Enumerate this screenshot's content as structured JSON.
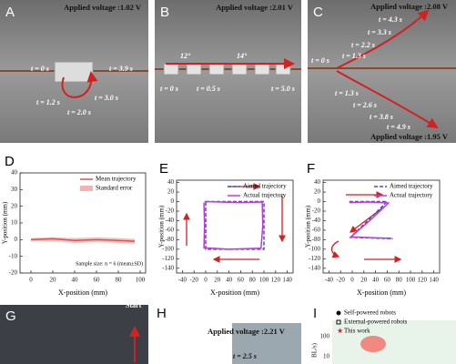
{
  "panels": {
    "A": {
      "label": "A",
      "voltage": "Applied voltage :1.02 V",
      "times": [
        "t = 0 s",
        "t = 3.9 s",
        "t = 1.2 s",
        "t = 3.0 s",
        "t = 2.0 s"
      ]
    },
    "B": {
      "label": "B",
      "voltage": "Applied voltage :2.01 V",
      "angles": [
        "12°",
        "14°"
      ],
      "times": [
        "t = 0 s",
        "t = 0.5 s",
        "t = 5.0 s"
      ]
    },
    "C": {
      "label": "C",
      "voltage_top": "Applied voltage :2.08 V",
      "voltage_bottom": "Applied voltage :1.95 V",
      "times": [
        "t = 4.3 s",
        "t = 3.3 s",
        "t = 2.2 s",
        "t = 1.3 s",
        "t = 0 s",
        "t = 1.3 s",
        "t = 2.6 s",
        "t = 3.8 s",
        "t = 4.9 s"
      ]
    },
    "G": {
      "label": "G",
      "start": "Start"
    },
    "H": {
      "label": "H",
      "voltage": "Applied voltage :2.21 V",
      "time": "t = 2.5 s"
    },
    "I": {
      "label": "I",
      "legend": [
        "Self-powered robots",
        "External-powered robots",
        "This work"
      ],
      "yticks": [
        "100",
        "10"
      ],
      "ylabel": "BL/s)"
    }
  },
  "chart_data": [
    {
      "panel": "D",
      "type": "line",
      "xlabel": "X-position (mm)",
      "ylabel": "Y-position (mm)",
      "xlim": [
        -10,
        105
      ],
      "xticks": [
        0,
        20,
        40,
        60,
        80,
        100
      ],
      "ylim": [
        -20,
        40
      ],
      "yticks": [
        -20,
        -10,
        0,
        10,
        20,
        30,
        40
      ],
      "series": [
        {
          "name": "Mean trajectory",
          "color": "#d9534f",
          "x": [
            0,
            20,
            40,
            60,
            80,
            95
          ],
          "values": [
            0,
            0.5,
            -0.5,
            0,
            -0.5,
            -1
          ]
        }
      ],
      "band": {
        "name": "Standard error",
        "color": "#f2b3b3",
        "x": [
          0,
          20,
          40,
          60,
          80,
          95
        ],
        "lower": [
          -1,
          -1,
          -2,
          -1.5,
          -2,
          -2.5
        ],
        "upper": [
          1,
          1.5,
          1,
          1.5,
          1,
          0.5
        ]
      },
      "annotation": "Sample size: n = 6 (mean±SD)"
    },
    {
      "panel": "E",
      "type": "line",
      "xlabel": "X-position (mm)",
      "ylabel": "Y-position (mm)",
      "xlim": [
        -50,
        150
      ],
      "xticks": [
        -40,
        -20,
        0,
        20,
        40,
        60,
        80,
        100,
        120,
        140
      ],
      "ylim": [
        -150,
        45
      ],
      "yticks": [
        -140,
        -120,
        -100,
        -80,
        -60,
        -40,
        -20,
        0,
        20,
        40
      ],
      "series": [
        {
          "name": "Aimed trajectory",
          "color": "#3b4fd8",
          "dash": true,
          "x": [
            0,
            100,
            100,
            0,
            0
          ],
          "values": [
            0,
            0,
            -100,
            -100,
            0
          ]
        },
        {
          "name": "Actual trajectory",
          "color": "#c23ad6",
          "x": [
            -2,
            60,
            97,
            98,
            95,
            40,
            -3,
            -2,
            -3
          ],
          "values": [
            0,
            -2,
            -1,
            -50,
            -98,
            -100,
            -97,
            -50,
            -2
          ]
        }
      ]
    },
    {
      "panel": "F",
      "type": "line",
      "xlabel": "X-position (mm)",
      "ylabel": "Y-position (mm)",
      "xlim": [
        -50,
        150
      ],
      "xticks": [
        -40,
        -20,
        0,
        20,
        40,
        60,
        80,
        100,
        120,
        140
      ],
      "ylim": [
        -150,
        45
      ],
      "yticks": [
        -140,
        -120,
        -100,
        -80,
        -60,
        -40,
        -20,
        0,
        20,
        40
      ],
      "series": [
        {
          "name": "Aimed trajectory",
          "color": "#3b4fd8",
          "dash": true,
          "x": [
            -5,
            60,
            -3,
            70
          ],
          "values": [
            0,
            0,
            -75,
            -78
          ]
        },
        {
          "name": "Actual trajectory",
          "color": "#c23ad6",
          "x": [
            -5,
            30,
            62,
            30,
            -2,
            35,
            68
          ],
          "values": [
            -2,
            -1,
            -3,
            -40,
            -74,
            -76,
            -77
          ]
        }
      ]
    }
  ]
}
